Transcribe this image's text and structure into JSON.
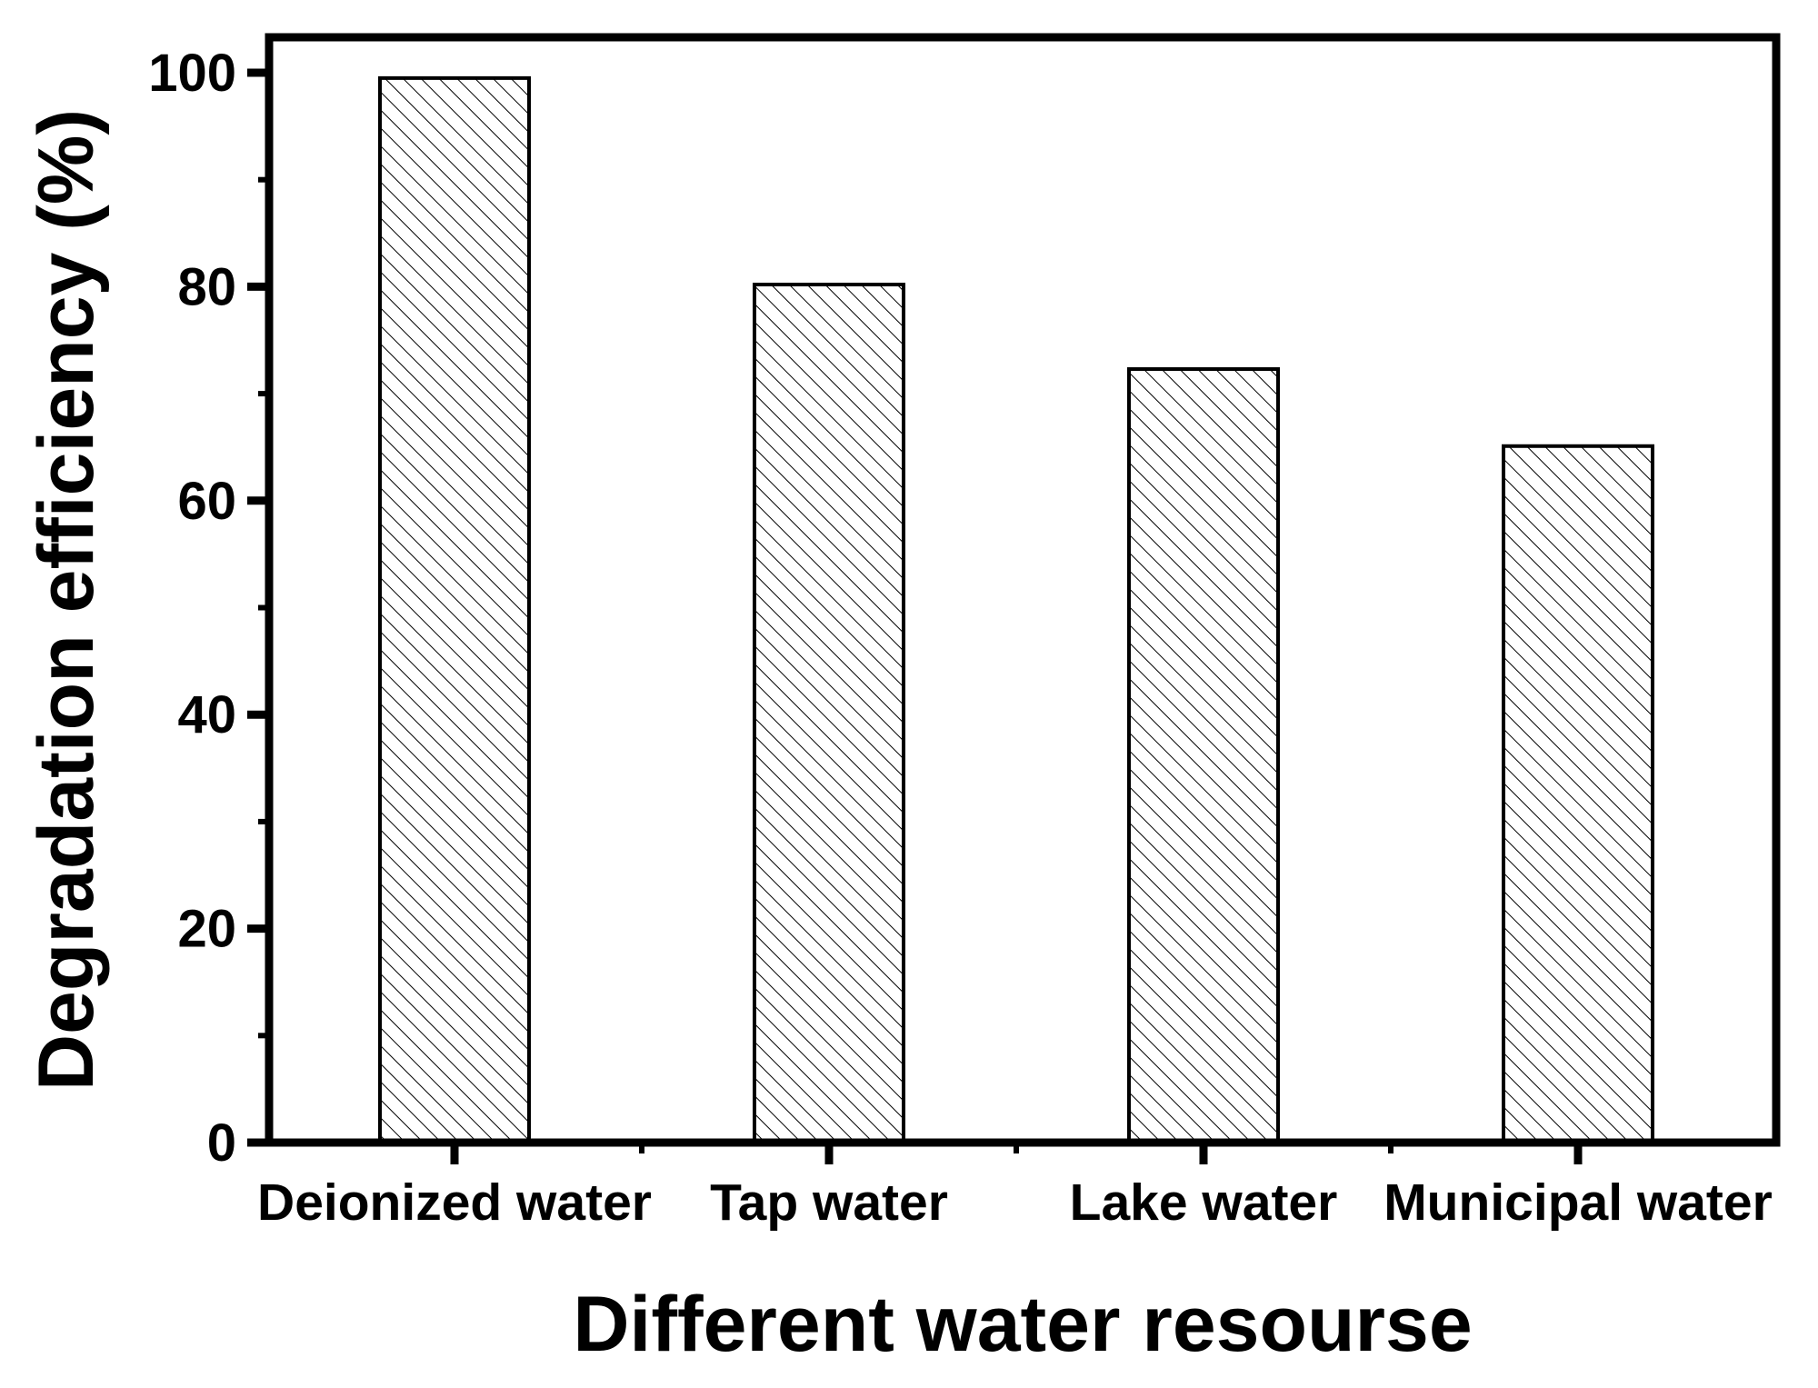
{
  "chart_data": {
    "type": "bar",
    "title": "",
    "xlabel": "Different water resourse",
    "ylabel": "Degradation efficiency (%)",
    "categories": [
      "Deionized water",
      "Tap water",
      "Lake water",
      "Municipal water"
    ],
    "values": [
      99.5,
      80.2,
      72.3,
      65.1
    ],
    "ylim": [
      0,
      100
    ],
    "yticks": [
      0,
      20,
      40,
      60,
      80,
      100
    ],
    "grid": false,
    "fill": "hatched",
    "colors": {
      "stroke": "#000000",
      "fill": "#ffffff"
    }
  }
}
